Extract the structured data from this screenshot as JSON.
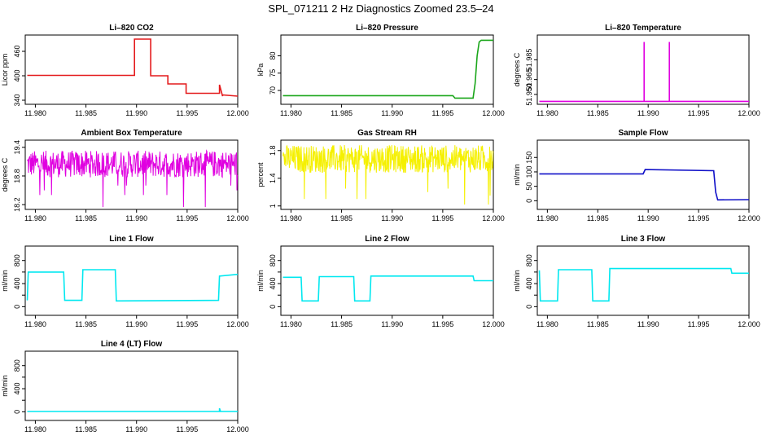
{
  "title": "SPL_071211  2 Hz Diagnostics Zoomed 23.5–24",
  "colors": {
    "red": "#e41a1c",
    "green": "#1aa61a",
    "magenta": "#e000e0",
    "yellow": "#f5f000",
    "blue": "#1010c8",
    "cyan": "#00e8f0"
  },
  "chart_data": [
    {
      "type": "line",
      "title": "Li–820 CO2",
      "ylabel": "Licor ppm",
      "color": "red",
      "xlim": [
        11.979,
        12.0
      ],
      "ylim": [
        330,
        500
      ],
      "yticks": [
        340,
        400,
        460
      ],
      "xticks": [
        "11.980",
        "11.985",
        "11.990",
        "11.995",
        "12.000"
      ],
      "series": [
        {
          "x": [
            11.9792,
            11.9898,
            11.9898,
            11.9914,
            11.9914,
            11.9931,
            11.9931,
            11.9949,
            11.9949,
            11.9982,
            11.9982,
            11.9985,
            11.9985,
            12.0
          ],
          "y": [
            401,
            401,
            490,
            490,
            400,
            400,
            380,
            380,
            357,
            357,
            378,
            350,
            353,
            350
          ]
        }
      ]
    },
    {
      "type": "line",
      "title": "Li–820 Pressure",
      "ylabel": "kPa",
      "color": "green",
      "xlim": [
        11.979,
        12.0
      ],
      "ylim": [
        66,
        86
      ],
      "yticks": [
        70,
        75,
        80
      ],
      "xticks": [
        "11.980",
        "11.985",
        "11.990",
        "11.995",
        "12.000"
      ],
      "series": [
        {
          "x": [
            11.9792,
            11.996,
            11.9962,
            11.998,
            11.9982,
            11.9984,
            11.9986,
            11.9988,
            12.0
          ],
          "y": [
            68.5,
            68.5,
            67.8,
            67.8,
            72,
            80,
            84,
            84.5,
            84.5
          ]
        }
      ]
    },
    {
      "type": "line",
      "title": "Li–820 Temperature",
      "ylabel": "degrees C",
      "color": "magenta",
      "xlim": [
        11.979,
        12.0
      ],
      "ylim": [
        51.94,
        52.01
      ],
      "yticks": [
        51.95,
        51.965,
        51.985
      ],
      "ytick_labels": [
        "51.950",
        "51.965",
        "51.985"
      ],
      "xticks": [
        "11.980",
        "11.985",
        "11.990",
        "11.995",
        "12.000"
      ],
      "series": [
        {
          "x": [
            11.9792,
            11.9896,
            11.9896,
            11.9896,
            11.9921,
            11.9921,
            11.9921,
            12.0
          ],
          "y": [
            51.943,
            51.943,
            52.003,
            51.943,
            51.943,
            52.003,
            51.943,
            51.943
          ]
        }
      ]
    },
    {
      "type": "line",
      "title": "Ambient Box Temperature",
      "ylabel": "degrees C",
      "color": "magenta",
      "xlim": [
        11.979,
        12.0
      ],
      "ylim": [
        18.1,
        19.55
      ],
      "yticks": [
        18.2,
        18.8,
        19.4
      ],
      "xticks": [
        "11.980",
        "11.985",
        "11.990",
        "11.995",
        "12.000"
      ],
      "band": {
        "x0": 11.9792,
        "x1": 12.0,
        "center": 19.05,
        "amp": 0.28,
        "spikes_low": [
          18.15,
          18.4,
          18.5,
          18.6
        ]
      }
    },
    {
      "type": "line",
      "title": "Gas Stream RH",
      "ylabel": "percent",
      "color": "yellow",
      "xlim": [
        11.979,
        12.0
      ],
      "ylim": [
        0.95,
        1.95
      ],
      "yticks": [
        1.0,
        1.4,
        1.8
      ],
      "xticks": [
        "11.980",
        "11.985",
        "11.990",
        "11.995",
        "12.000"
      ],
      "band": {
        "x0": 11.9792,
        "x1": 12.0,
        "center": 1.68,
        "amp": 0.2,
        "spikes_low": [
          1.02,
          1.1,
          1.15,
          1.2,
          1.25,
          1.3
        ]
      }
    },
    {
      "type": "line",
      "title": "Sample Flow",
      "ylabel": "ml/min",
      "color": "blue",
      "xlim": [
        11.979,
        12.0
      ],
      "ylim": [
        -30,
        210
      ],
      "yticks": [
        0,
        50,
        100,
        150
      ],
      "xticks": [
        "11.980",
        "11.985",
        "11.990",
        "11.995",
        "12.000"
      ],
      "series": [
        {
          "x": [
            11.9792,
            11.9895,
            11.9897,
            11.9965,
            11.9967,
            11.9969,
            12.0
          ],
          "y": [
            93,
            93,
            108,
            104,
            30,
            3,
            4
          ]
        }
      ]
    },
    {
      "type": "line",
      "title": "Line 1 Flow",
      "ylabel": "ml/min",
      "color": "cyan",
      "xlim": [
        11.979,
        12.0
      ],
      "ylim": [
        -150,
        1050
      ],
      "yticks": [
        0,
        200,
        400,
        600,
        800
      ],
      "ytick_labels": [
        "0",
        "",
        "400",
        "",
        "800"
      ],
      "xticks": [
        "11.980",
        "11.985",
        "11.990",
        "11.995",
        "12.000"
      ],
      "series": [
        {
          "x": [
            11.9792,
            11.9793,
            11.9828,
            11.9829,
            11.9846,
            11.9847,
            11.9879,
            11.988,
            11.9981,
            11.9982,
            12.0
          ],
          "y": [
            110,
            600,
            600,
            110,
            110,
            640,
            640,
            100,
            110,
            530,
            560
          ]
        }
      ]
    },
    {
      "type": "line",
      "title": "Line 2 Flow",
      "ylabel": "ml/min",
      "color": "cyan",
      "xlim": [
        11.979,
        12.0
      ],
      "ylim": [
        -150,
        1050
      ],
      "yticks": [
        0,
        200,
        400,
        600,
        800
      ],
      "ytick_labels": [
        "0",
        "",
        "400",
        "",
        "800"
      ],
      "xticks": [
        "11.980",
        "11.985",
        "11.990",
        "11.995",
        "12.000"
      ],
      "series": [
        {
          "x": [
            11.9792,
            11.981,
            11.9811,
            11.9827,
            11.9828,
            11.9862,
            11.9863,
            11.9878,
            11.9879,
            11.998,
            11.9981,
            12.0
          ],
          "y": [
            510,
            510,
            100,
            100,
            520,
            520,
            100,
            100,
            530,
            530,
            450,
            450
          ]
        }
      ]
    },
    {
      "type": "line",
      "title": "Line 3 Flow",
      "ylabel": "ml/min",
      "color": "cyan",
      "xlim": [
        11.979,
        12.0
      ],
      "ylim": [
        -150,
        1050
      ],
      "yticks": [
        0,
        200,
        400,
        600,
        800
      ],
      "ytick_labels": [
        "0",
        "",
        "400",
        "",
        "800"
      ],
      "xticks": [
        "11.980",
        "11.985",
        "11.990",
        "11.995",
        "12.000"
      ],
      "series": [
        {
          "x": [
            11.9792,
            11.9793,
            11.981,
            11.9811,
            11.9844,
            11.9845,
            11.9861,
            11.9862,
            11.9982,
            11.9983,
            12.0
          ],
          "y": [
            630,
            100,
            100,
            640,
            640,
            100,
            100,
            660,
            660,
            580,
            580
          ]
        }
      ]
    },
    {
      "type": "line",
      "title": "Line 4 (LT) Flow",
      "ylabel": "ml/min",
      "color": "cyan",
      "xlim": [
        11.979,
        12.0
      ],
      "ylim": [
        -150,
        1050
      ],
      "yticks": [
        0,
        200,
        400,
        600,
        800
      ],
      "ytick_labels": [
        "0",
        "",
        "400",
        "",
        "800"
      ],
      "xticks": [
        "11.980",
        "11.985",
        "11.990",
        "11.995",
        "12.000"
      ],
      "series": [
        {
          "x": [
            11.9792,
            11.9982,
            11.9982,
            11.9983,
            12.0
          ],
          "y": [
            5,
            5,
            60,
            5,
            5
          ]
        }
      ]
    }
  ]
}
